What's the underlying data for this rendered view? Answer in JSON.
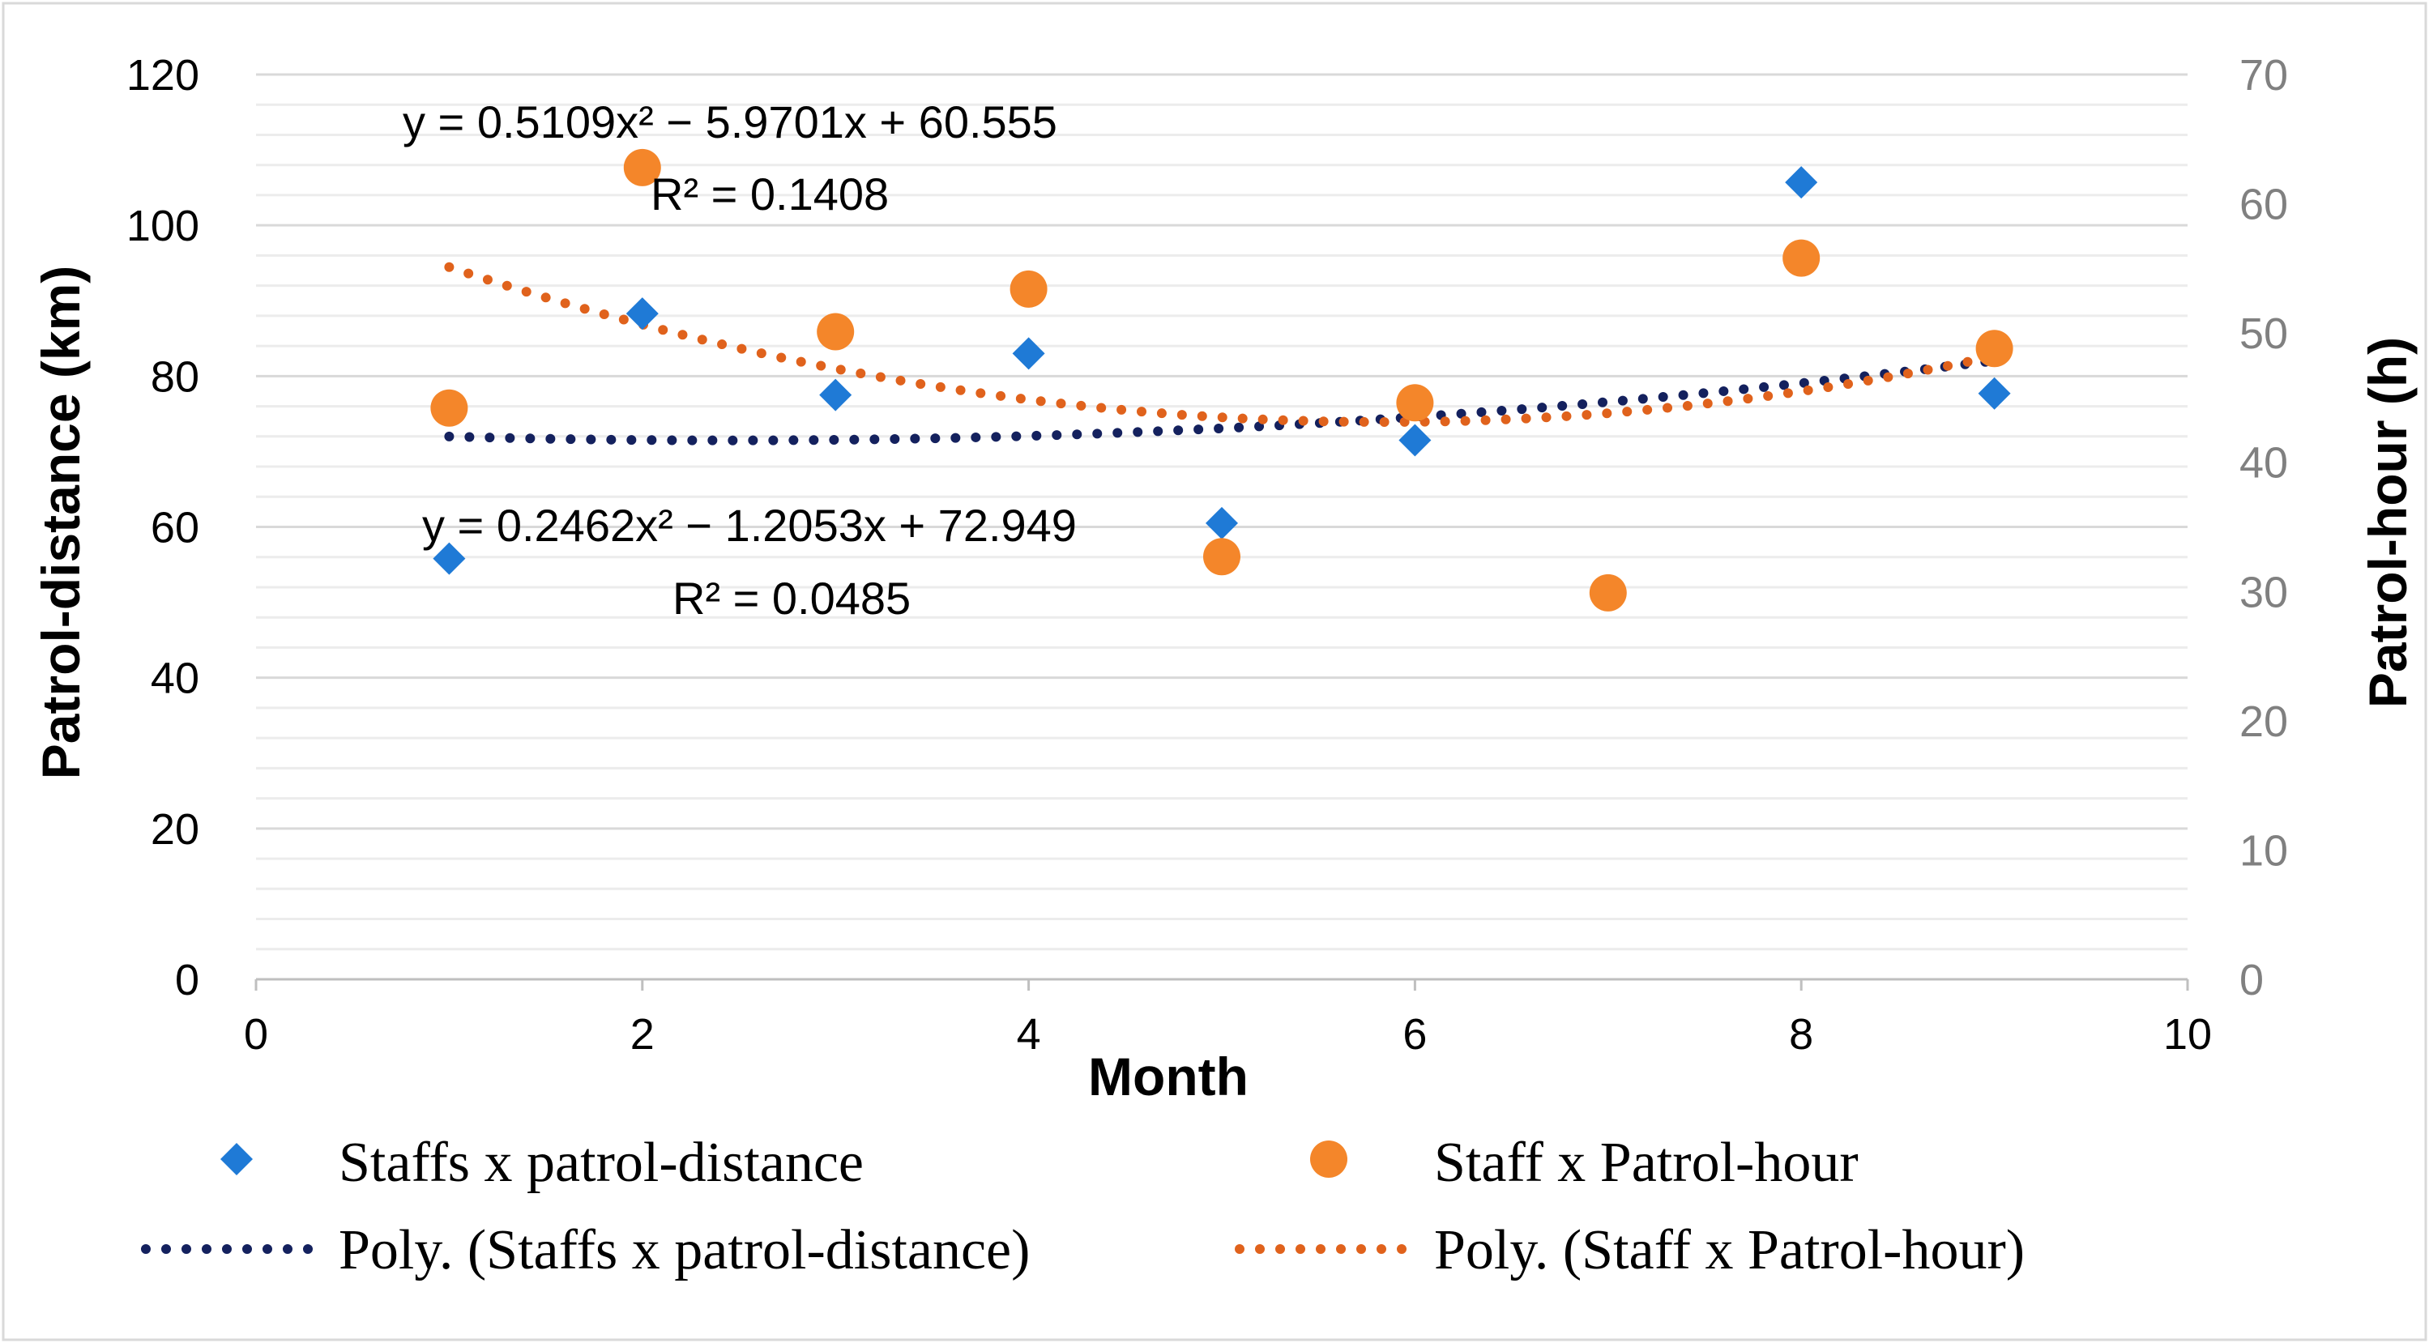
{
  "chart_data": {
    "type": "scatter",
    "title": "",
    "xlabel": "Month",
    "ylabel": "Patrol-distance (km)",
    "y2label": "Patrol-hour (h)",
    "xlim": [
      0,
      10
    ],
    "ylim": [
      0,
      120
    ],
    "y2lim": [
      0,
      70
    ],
    "xticks": [
      0,
      2,
      4,
      6,
      8,
      10
    ],
    "yticks": [
      0,
      20,
      40,
      60,
      80,
      100,
      120
    ],
    "y2ticks": [
      0,
      10,
      20,
      30,
      40,
      50,
      60,
      70
    ],
    "grid": true,
    "legend_position": "bottom",
    "series": [
      {
        "name": "Staffs x patrol-distance",
        "marker": "diamond",
        "axis": "left",
        "color": "#1F7AD6",
        "x": [
          1,
          2,
          3,
          4,
          5,
          6,
          8,
          9
        ],
        "y": [
          55.8,
          88.3,
          77.5,
          83.0,
          60.5,
          71.5,
          105.7,
          77.7
        ]
      },
      {
        "name": "Staff x Patrol-hour",
        "marker": "circle",
        "axis": "right",
        "color": "#F4862A",
        "x": [
          1,
          2,
          3,
          4,
          5,
          6,
          7,
          8,
          9
        ],
        "y": [
          44.2,
          62.8,
          50.1,
          53.4,
          32.7,
          44.6,
          29.9,
          55.8,
          48.8
        ]
      }
    ],
    "trendlines": [
      {
        "name": "Poly. (Staffs x patrol-distance)",
        "axis": "left",
        "color": "#14215E",
        "coefficients": [
          0.2462,
          -1.2053,
          72.949
        ],
        "x_range": [
          1,
          9
        ],
        "equation": "y = 0.2462x² − 1.2053x + 72.949",
        "r2": "R² = 0.0485"
      },
      {
        "name": "Poly. (Staff x Patrol-hour)",
        "axis": "right",
        "color": "#E0621C",
        "coefficients": [
          0.5109,
          -5.9701,
          60.555
        ],
        "x_range": [
          1,
          9
        ],
        "equation": "y = 0.5109x² − 5.9701x + 60.555",
        "r2": "R² = 0.1408"
      }
    ]
  }
}
